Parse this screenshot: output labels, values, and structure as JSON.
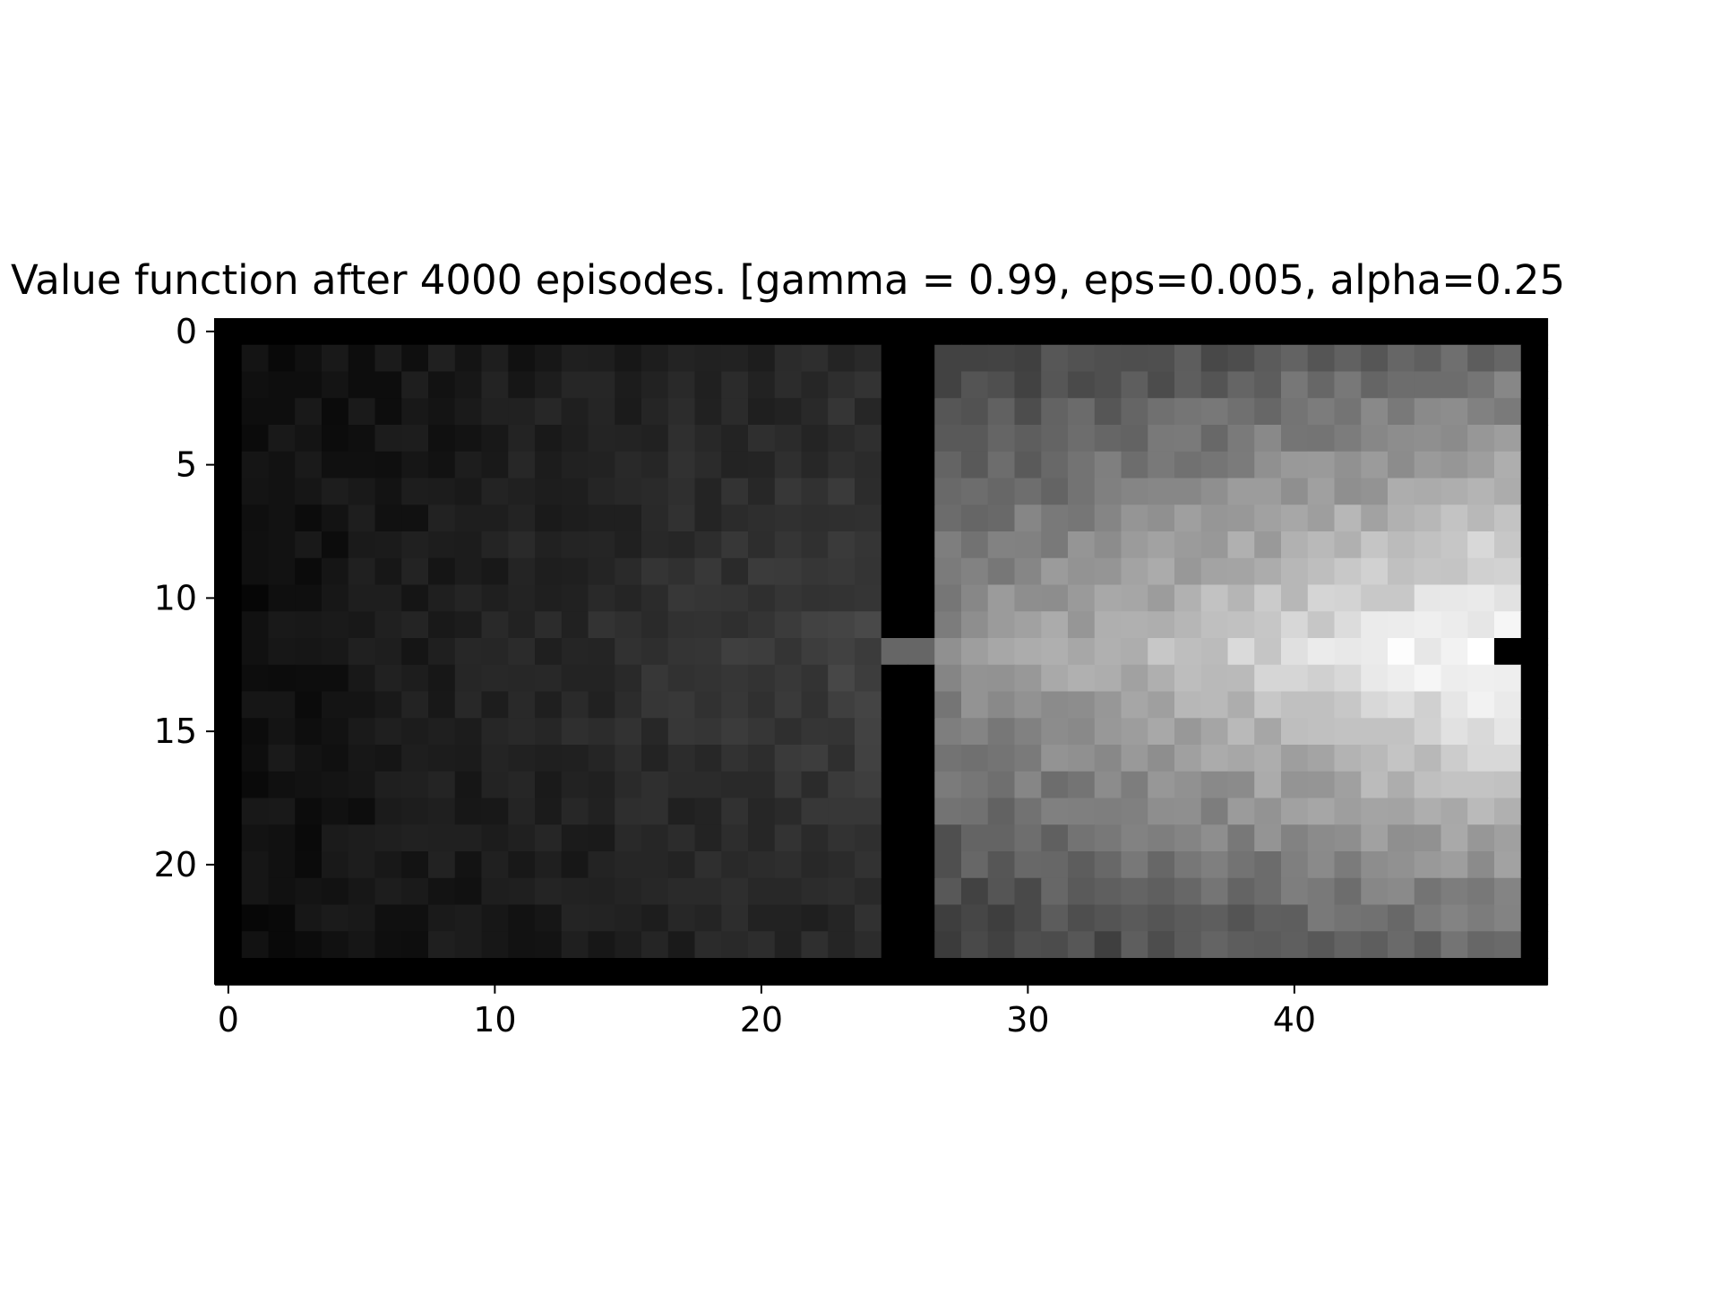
{
  "chart_data": {
    "type": "heatmap",
    "title": "Value function after 4000 episodes. [gamma = 0.99, eps=0.005, alpha=0.25",
    "xlabel": "",
    "ylabel": "",
    "colormap": "gray",
    "grid": false,
    "xlim": [
      -0.5,
      49.5
    ],
    "ylim": [
      24.5,
      -0.5
    ],
    "x_ticks": [
      0,
      10,
      20,
      30,
      40
    ],
    "y_ticks": [
      0,
      5,
      10,
      15,
      20
    ],
    "x_tick_labels": [
      "0",
      "10",
      "20",
      "30",
      "40"
    ],
    "y_tick_labels": [
      "0",
      "5",
      "10",
      "15",
      "20"
    ],
    "rows": 25,
    "cols": 50,
    "value_range": [
      0,
      1
    ],
    "walls": "outer border (row 0, row 24, col 0, col 49) plus vertical wall at cols 25–26 with an opening at row 12",
    "goal_cell_black": [
      12,
      48
    ],
    "value_description": "Values are dark (about 0.05–0.30) in the left room, rising toward the doorway at row 12; in the right room they rise from about 0.3 to near 1.0 next to the goal at row 12, col 48."
  }
}
